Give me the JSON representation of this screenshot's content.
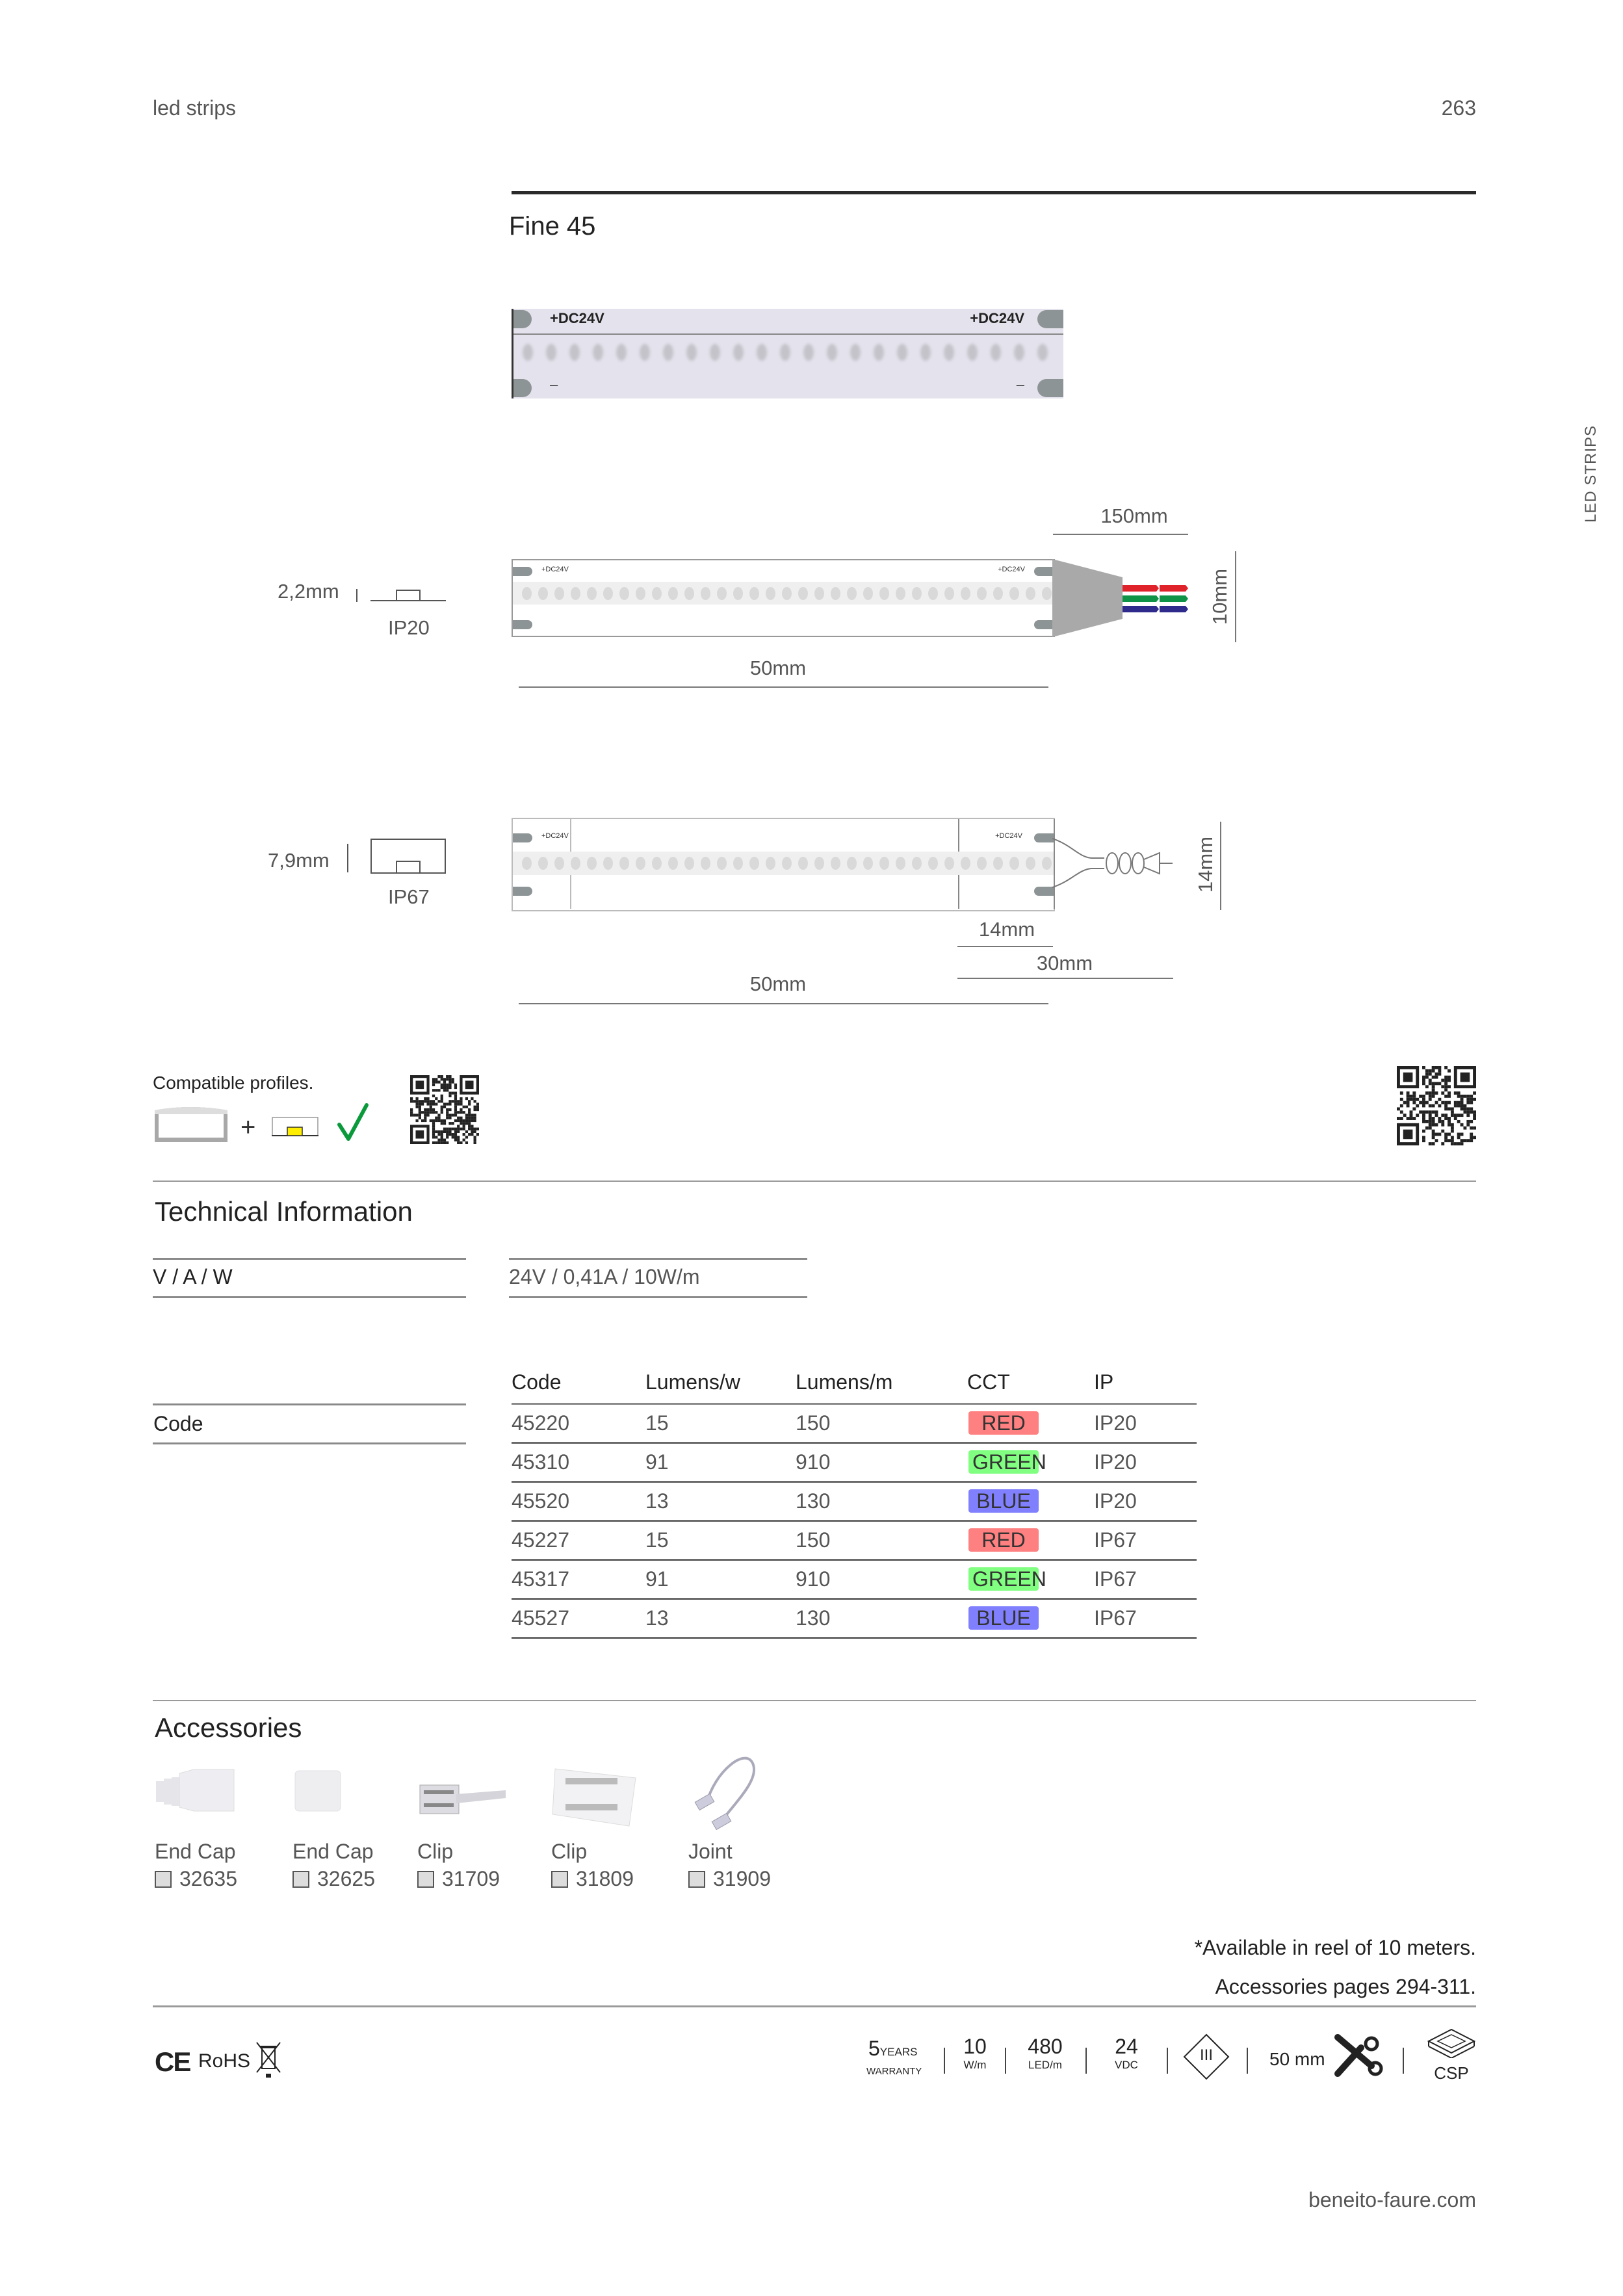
{
  "header": {
    "section": "led strips",
    "page_number": "263",
    "side_label": "LED STRIPS"
  },
  "product": {
    "title": "Fine 45",
    "photo_label_left": "+DC24V",
    "photo_label_right": "+DC24V",
    "minus_left": "–",
    "minus_right": "–"
  },
  "drawing_ip20": {
    "thickness": "2,2mm",
    "ip": "IP20",
    "strip_label_left": "+DC24V",
    "strip_label_right": "+DC24V",
    "cable_length": "150mm",
    "width": "10mm",
    "cut_length": "50mm",
    "wire_colors": [
      "#e0232a",
      "#0f9447",
      "#2e2b8c"
    ]
  },
  "drawing_ip67": {
    "thickness": "7,9mm",
    "ip": "IP67",
    "strip_label_left": "+DC24V",
    "strip_label_right": "+DC24V",
    "width": "14mm",
    "connector_length": "14mm",
    "end_length": "30mm",
    "cut_length": "50mm"
  },
  "compatible": {
    "label": "Compatible profiles.",
    "plus": "+",
    "check_color": "#0a9a3c",
    "led_color": "#ffee00"
  },
  "tech": {
    "title": "Technical Information",
    "vaw_label": "V / A / W",
    "vaw_value": "24V / 0,41A / 10W/m",
    "code_label": "Code",
    "columns": [
      "Code",
      "Lumens/w",
      "Lumens/m",
      "CCT",
      "IP"
    ],
    "rows": [
      {
        "code": "45220",
        "lmw": "15",
        "lmm": "150",
        "cct": "RED",
        "cct_color": "#ff8080",
        "ip": "IP20"
      },
      {
        "code": "45310",
        "lmw": "91",
        "lmm": "910",
        "cct": "GREEN",
        "cct_color": "#80ff80",
        "ip": "IP20"
      },
      {
        "code": "45520",
        "lmw": "13",
        "lmm": "130",
        "cct": "BLUE",
        "cct_color": "#8080ff",
        "ip": "IP20"
      },
      {
        "code": "45227",
        "lmw": "15",
        "lmm": "150",
        "cct": "RED",
        "cct_color": "#ff8080",
        "ip": "IP67"
      },
      {
        "code": "45317",
        "lmw": "91",
        "lmm": "910",
        "cct": "GREEN",
        "cct_color": "#80ff80",
        "ip": "IP67"
      },
      {
        "code": "45527",
        "lmw": "13",
        "lmm": "130",
        "cct": "BLUE",
        "cct_color": "#8080ff",
        "ip": "IP67"
      }
    ]
  },
  "accessories": {
    "title": "Accessories",
    "items": [
      {
        "name": "End Cap",
        "code": "32635",
        "icon": "end-cap-ribbed"
      },
      {
        "name": "End Cap",
        "code": "32625",
        "icon": "end-cap-flat"
      },
      {
        "name": "Clip",
        "code": "31709",
        "icon": "clip-cable"
      },
      {
        "name": "Clip",
        "code": "31809",
        "icon": "clip-joiner"
      },
      {
        "name": "Joint",
        "code": "31909",
        "icon": "joint-cable"
      }
    ]
  },
  "notes": {
    "reel": "*Available in reel of 10 meters.",
    "accessories_pages": "Accessories pages 294-311."
  },
  "footer": {
    "certs": {
      "ce": "CE",
      "rohs": "RoHS"
    },
    "specs": [
      {
        "value": "5",
        "unit_inline": "YEARS",
        "unit": "WARRANTY"
      },
      {
        "value": "10",
        "unit": "W/m"
      },
      {
        "value": "480",
        "unit": "LED/m"
      },
      {
        "value": "24",
        "unit": "VDC"
      }
    ],
    "class_symbol": "III",
    "cut": "50 mm",
    "chip": "CSP",
    "website": "beneito-faure.com"
  }
}
